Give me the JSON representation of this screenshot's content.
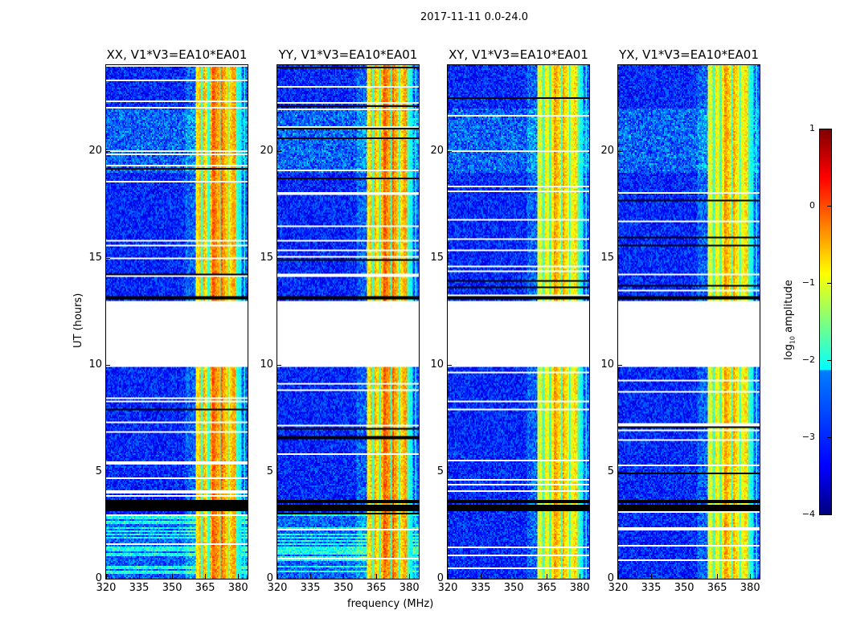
{
  "suptitle": "2017-11-11 0.0-24.0",
  "chart_data": {
    "type": "heatmap",
    "title": "2017-11-11 0.0-24.0",
    "xlabel": "frequency (MHz)",
    "ylabel": "UT (hours)",
    "xlim": [
      320,
      384.3
    ],
    "ylim": [
      0,
      24
    ],
    "xticks": [
      "320",
      "335",
      "350",
      "365",
      "380"
    ],
    "xtick_values": [
      320,
      335,
      350,
      365,
      380
    ],
    "yticks": [
      "0",
      "5",
      "10",
      "15",
      "20"
    ],
    "ytick_values": [
      0,
      5,
      10,
      15,
      20
    ],
    "panels": [
      {
        "title": "XX, V1*V3=EA10*EA01",
        "low_freq_striations": true
      },
      {
        "title": "YY, V1*V3=EA10*EA01",
        "low_freq_striations": true
      },
      {
        "title": "XY, V1*V3=EA10*EA01",
        "low_freq_striations": false
      },
      {
        "title": "YX, V1*V3=EA10*EA01",
        "low_freq_striations": false
      }
    ],
    "data_gap_hours": [
      9.9,
      13.0
    ],
    "flagged_black_hours": [
      3.2,
      3.4,
      3.6,
      13.1
    ],
    "strong_band_mhz": [
      360.5,
      380.0
    ],
    "background_log10_amplitude": -3.2,
    "band_log10_amplitude": -0.5,
    "colorbar": {
      "label_prefix": "log",
      "label_sub": "10",
      "label_suffix": " amplitude",
      "range": [
        -4,
        1
      ],
      "colormap": "jet",
      "ticks": [
        "1",
        "0",
        "−1",
        "−2",
        "−3",
        "−4"
      ],
      "tick_values": [
        1,
        0,
        -1,
        -2,
        -3,
        -4
      ]
    }
  }
}
